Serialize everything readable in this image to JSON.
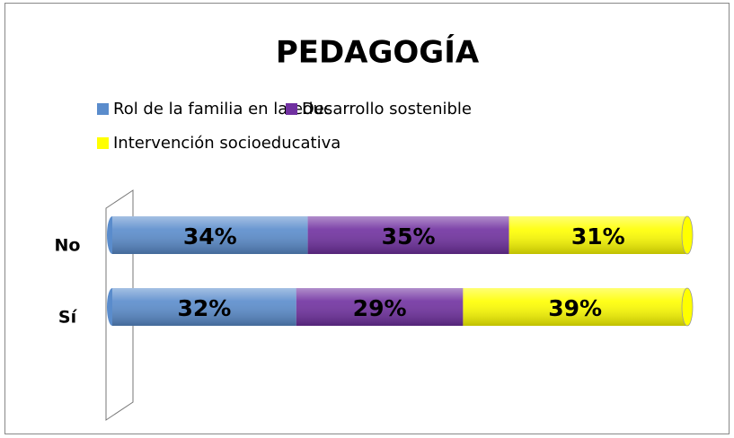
{
  "chart_data": {
    "type": "stacked_hbar",
    "title": "PEDAGOGÍA",
    "categories": [
      "No",
      "Sí"
    ],
    "series": [
      {
        "name": "Rol de la familia en la educ",
        "color": "#5a8ccc",
        "values": [
          34,
          32
        ],
        "value_labels": [
          "34%",
          "32%"
        ]
      },
      {
        "name": "Desarrollo sostenible",
        "color": "#7030a0",
        "values": [
          35,
          29
        ],
        "value_labels": [
          "35%",
          "29%"
        ]
      },
      {
        "name": "Intervención socioeducativa",
        "color": "#ffff00",
        "values": [
          31,
          39
        ],
        "value_labels": [
          "31%",
          "39%"
        ]
      }
    ]
  }
}
